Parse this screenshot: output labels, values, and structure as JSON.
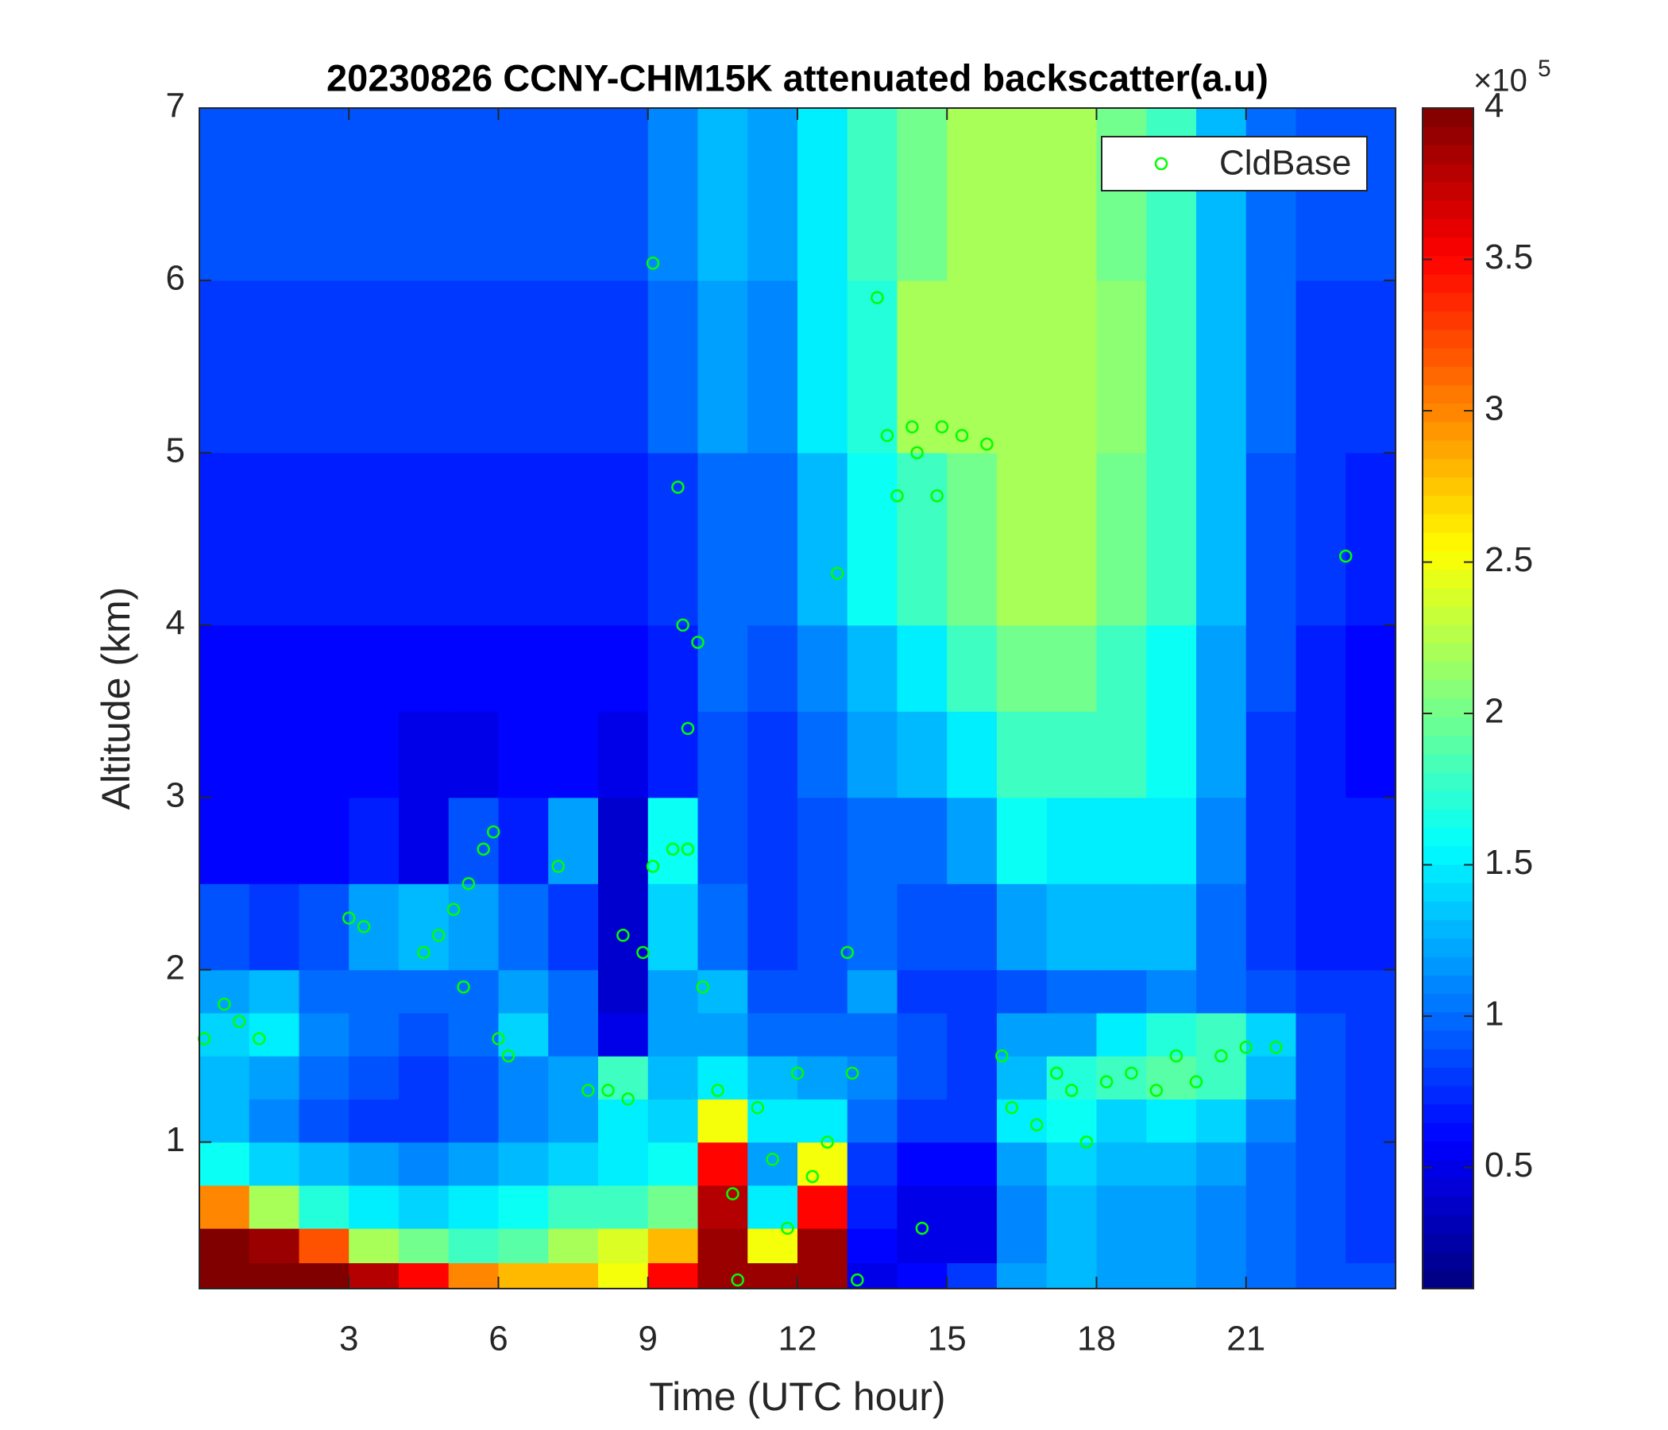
{
  "chart_data": {
    "type": "heatmap",
    "title": "20230826 CCNY-CHM15K attenuated backscatter(a.u)",
    "x_label": "Time (UTC hour)",
    "y_label": "Altitude (km)",
    "xlim": [
      0,
      24
    ],
    "xticks": [
      3,
      6,
      9,
      12,
      15,
      18,
      21
    ],
    "ylim": [
      0.15,
      7
    ],
    "yticks": [
      1,
      2,
      3,
      4,
      5,
      6,
      7
    ],
    "colormap": "jet",
    "clim": [
      0.1,
      4
    ],
    "colorbar_ticks": [
      0.5,
      1,
      1.5,
      2,
      2.5,
      3,
      3.5,
      4
    ],
    "colorbar_multiplier": "×10",
    "colorbar_exponent": "5",
    "legend": "upper right",
    "x_edges": [
      0,
      1,
      2,
      3,
      4,
      5,
      6,
      7,
      8,
      9,
      10,
      11,
      12,
      13,
      14,
      15,
      16,
      17,
      18,
      19,
      20,
      21,
      22,
      23,
      24
    ],
    "y_edges": [
      0.15,
      0.3,
      0.5,
      0.75,
      1,
      1.25,
      1.5,
      1.75,
      2,
      2.5,
      3,
      3.5,
      4,
      5,
      6,
      7
    ],
    "z": [
      [
        4,
        4,
        4,
        3.8,
        3.5,
        3,
        2.8,
        2.8,
        2.5,
        3.5,
        3.9,
        3.9,
        3.9,
        0.5,
        0.6,
        0.8,
        1.2,
        1.3,
        1.2,
        1.2,
        1.1,
        1,
        0.9,
        0.9
      ],
      [
        4,
        3.9,
        3.2,
        2.2,
        2,
        1.8,
        1.9,
        2.2,
        2.4,
        2.8,
        3.9,
        2.5,
        3.9,
        0.6,
        0.5,
        0.5,
        1.1,
        1.3,
        1.2,
        1.2,
        1.1,
        1,
        0.9,
        0.8
      ],
      [
        3,
        2.2,
        1.7,
        1.5,
        1.4,
        1.5,
        1.6,
        1.8,
        1.8,
        2,
        3.8,
        1.5,
        3.5,
        0.7,
        0.5,
        0.5,
        1.1,
        1.3,
        1.2,
        1.2,
        1.1,
        1,
        0.9,
        0.8
      ],
      [
        1.6,
        1.4,
        1.3,
        1.2,
        1.1,
        1.2,
        1.3,
        1.4,
        1.5,
        1.6,
        3.5,
        1.2,
        2.5,
        0.8,
        0.6,
        0.6,
        1.2,
        1.4,
        1.3,
        1.3,
        1.2,
        1,
        0.9,
        0.8
      ],
      [
        1.3,
        1.1,
        0.9,
        0.8,
        0.8,
        0.9,
        1.1,
        1.2,
        1.5,
        1.4,
        2.5,
        1.5,
        1.5,
        1,
        0.8,
        0.8,
        1.5,
        1.6,
        1.4,
        1.5,
        1.4,
        1.1,
        0.9,
        0.8
      ],
      [
        1.3,
        1.2,
        1,
        0.9,
        0.8,
        0.9,
        1.1,
        1.2,
        1.8,
        1.3,
        1.5,
        1.3,
        1.2,
        1.1,
        0.9,
        0.8,
        1.3,
        1.7,
        1.8,
        1.9,
        1.8,
        1.3,
        0.9,
        0.8
      ],
      [
        1.4,
        1.5,
        1.1,
        1,
        0.9,
        1,
        1.4,
        1,
        0.5,
        1.2,
        1.2,
        1,
        1,
        1,
        0.9,
        0.8,
        1.2,
        1.2,
        1.5,
        1.7,
        1.8,
        1.4,
        0.9,
        0.8
      ],
      [
        1.2,
        1.3,
        1,
        1,
        1,
        1,
        1.2,
        1,
        0.4,
        1.2,
        1.3,
        0.9,
        0.9,
        1.2,
        0.8,
        0.8,
        0.9,
        1,
        1,
        1.1,
        1,
        0.9,
        0.8,
        0.8
      ],
      [
        0.9,
        0.8,
        0.9,
        1.2,
        1.3,
        1.2,
        1,
        0.8,
        0.4,
        1.4,
        1,
        0.8,
        0.9,
        1,
        0.9,
        0.9,
        1.2,
        1.3,
        1.3,
        1.3,
        1,
        0.8,
        0.7,
        0.7
      ],
      [
        0.6,
        0.6,
        0.6,
        0.7,
        0.5,
        0.9,
        0.7,
        1.2,
        0.4,
        1.6,
        0.9,
        0.8,
        0.9,
        1,
        1,
        1.2,
        1.6,
        1.5,
        1.5,
        1.5,
        1.1,
        0.8,
        0.7,
        0.7
      ],
      [
        0.6,
        0.6,
        0.6,
        0.6,
        0.5,
        0.5,
        0.6,
        0.6,
        0.5,
        0.7,
        0.9,
        0.8,
        1,
        1.2,
        1.3,
        1.5,
        1.8,
        1.8,
        1.8,
        1.6,
        1.2,
        0.8,
        0.7,
        0.6
      ],
      [
        0.6,
        0.6,
        0.6,
        0.6,
        0.6,
        0.6,
        0.6,
        0.6,
        0.6,
        0.7,
        1,
        0.9,
        1.1,
        1.3,
        1.5,
        1.8,
        2,
        2,
        1.8,
        1.6,
        1.2,
        0.9,
        0.7,
        0.6
      ],
      [
        0.7,
        0.7,
        0.7,
        0.7,
        0.7,
        0.7,
        0.7,
        0.7,
        0.7,
        0.8,
        1,
        1,
        1.3,
        1.6,
        1.8,
        2,
        2.2,
        2.2,
        2,
        1.8,
        1.3,
        0.9,
        0.8,
        0.7
      ],
      [
        0.8,
        0.8,
        0.8,
        0.8,
        0.8,
        0.8,
        0.8,
        0.8,
        0.8,
        1,
        1.2,
        1.1,
        1.5,
        1.7,
        2.2,
        2.2,
        2.2,
        2.2,
        2.1,
        1.8,
        1.3,
        1,
        0.8,
        0.8
      ],
      [
        0.9,
        0.9,
        0.9,
        0.9,
        0.9,
        0.9,
        0.9,
        0.9,
        0.9,
        1.1,
        1.3,
        1.2,
        1.5,
        1.8,
        2,
        2.2,
        2.2,
        2.2,
        2,
        1.8,
        1.3,
        1,
        0.9,
        0.9
      ]
    ],
    "overlay": {
      "name": "CldBase",
      "color": "#00ff00",
      "marker": "circle",
      "x": [
        0.1,
        0.5,
        0.8,
        1.2,
        3,
        3.3,
        4.5,
        4.8,
        5.1,
        5.4,
        5.7,
        5.9,
        5.3,
        6,
        6.2,
        7.2,
        7.8,
        8.2,
        8.6,
        8.5,
        8.9,
        9.1,
        9.5,
        9.8,
        9.1,
        9.6,
        9.7,
        9.8,
        10,
        10.1,
        10.4,
        10.7,
        10.8,
        11.2,
        11.5,
        11.8,
        12,
        12.3,
        12.6,
        12.8,
        13,
        13.1,
        13.2,
        13.6,
        13.8,
        14,
        14.3,
        14.4,
        14.8,
        14.9,
        15.3,
        15.8,
        14.5,
        16.1,
        16.3,
        16.8,
        17.2,
        17.5,
        17.8,
        18.2,
        18.7,
        19.2,
        19.6,
        20,
        20.5,
        21,
        21.6,
        23
      ],
      "y": [
        1.6,
        1.8,
        1.7,
        1.6,
        2.3,
        2.25,
        2.1,
        2.2,
        2.35,
        2.5,
        2.7,
        2.8,
        1.9,
        1.6,
        1.5,
        2.6,
        1.3,
        1.3,
        1.25,
        2.2,
        2.1,
        2.6,
        2.7,
        2.7,
        6.1,
        4.8,
        4.0,
        3.4,
        3.9,
        1.9,
        1.3,
        0.7,
        0.2,
        1.2,
        0.9,
        0.5,
        1.4,
        0.8,
        1.0,
        4.3,
        2.1,
        1.4,
        0.2,
        5.9,
        5.1,
        4.75,
        5.15,
        5.0,
        4.75,
        5.15,
        5.1,
        5.05,
        0.5,
        1.5,
        1.2,
        1.1,
        1.4,
        1.3,
        1.0,
        1.35,
        1.4,
        1.3,
        1.5,
        1.35,
        1.5,
        1.55,
        1.55,
        4.4
      ]
    }
  }
}
